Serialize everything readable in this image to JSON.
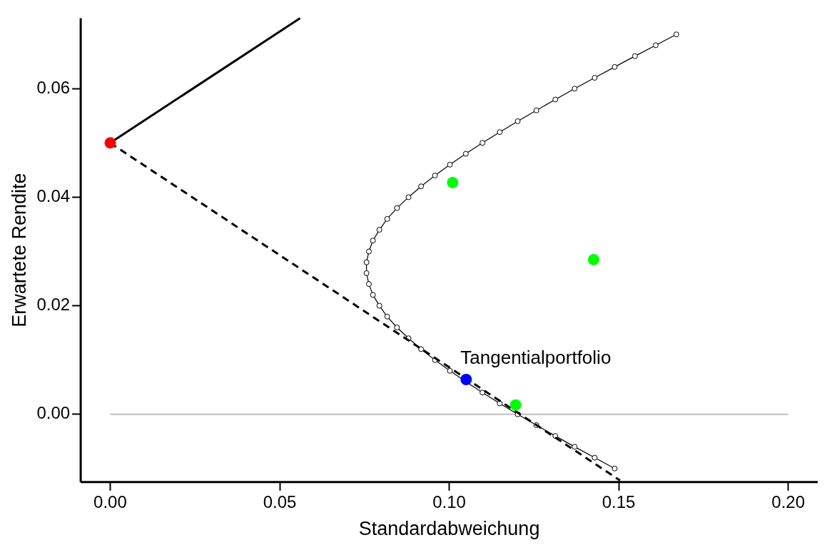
{
  "chart_data": {
    "type": "scatter",
    "xlabel": "Standardabweichung",
    "ylabel": "Erwartete Rendite",
    "xlim": [
      -0.0087,
      0.2087
    ],
    "ylim": [
      -0.0125,
      0.073
    ],
    "xticks": [
      {
        "value": 0,
        "label": "0.00"
      },
      {
        "value": 0.05,
        "label": "0.05"
      },
      {
        "value": 0.1,
        "label": "0.10"
      },
      {
        "value": 0.15,
        "label": "0.15"
      },
      {
        "value": 0.2,
        "label": "0.20"
      }
    ],
    "yticks": [
      {
        "value": 0,
        "label": "0.00"
      },
      {
        "value": 0.02,
        "label": "0.02"
      },
      {
        "value": 0.04,
        "label": "0.04"
      },
      {
        "value": 0.06,
        "label": "0.06"
      }
    ],
    "grid": false,
    "legend": false,
    "ref_lines": [
      {
        "axis": "y",
        "value": 0,
        "color": "#bebebe"
      }
    ],
    "annotations": [
      {
        "text": "Tangentialportfolio",
        "x": 0.105,
        "y": 0.0064
      }
    ],
    "series": [
      {
        "type": "line",
        "color": "#000000",
        "marker": "circle",
        "line_style": "solid",
        "x": [
          0.1488,
          0.1429,
          0.137,
          0.1313,
          0.1257,
          0.1202,
          0.1149,
          0.1098,
          0.1049,
          0.1002,
          0.0958,
          0.0917,
          0.088,
          0.0846,
          0.0817,
          0.0794,
          0.0775,
          0.0763,
          0.0756,
          0.0756,
          0.0763,
          0.0775,
          0.0794,
          0.0817,
          0.0846,
          0.088,
          0.0917,
          0.0958,
          0.1002,
          0.1049,
          0.1098,
          0.1149,
          0.1202,
          0.1257,
          0.1313,
          0.137,
          0.1429,
          0.1488,
          0.1548,
          0.1609,
          0.167
        ],
        "values": [
          -0.01,
          -0.008,
          -0.006,
          -0.004,
          -0.002,
          0,
          0.002,
          0.004,
          0.006,
          0.008,
          0.01,
          0.012,
          0.014,
          0.016,
          0.018,
          0.02,
          0.022,
          0.024,
          0.026,
          0.028,
          0.03,
          0.032,
          0.034,
          0.036,
          0.038,
          0.04,
          0.042,
          0.044,
          0.046,
          0.048,
          0.05,
          0.052,
          0.054,
          0.056,
          0.058,
          0.06,
          0.062,
          0.064,
          0.066,
          0.068,
          0.07
        ]
      },
      {
        "type": "line",
        "color": "#000000",
        "marker": "none",
        "line_style": "solid",
        "x": [
          0,
          0.056
        ],
        "values": [
          0.05,
          0.073
        ]
      },
      {
        "type": "line",
        "color": "#000000",
        "marker": "none",
        "line_style": "dashed",
        "x": [
          0,
          0.1504
        ],
        "values": [
          0.05,
          -0.0122
        ]
      },
      {
        "type": "scatter",
        "color": "#00ff00",
        "marker": "circle",
        "x": [
          0.101,
          0.1426,
          0.1196
        ],
        "values": [
          0.0427,
          0.0285,
          0.0017
        ]
      },
      {
        "type": "scatter",
        "color": "#ff0000",
        "marker": "circle",
        "x": [
          0
        ],
        "values": [
          0.05
        ]
      },
      {
        "type": "scatter",
        "color": "#0000ff",
        "marker": "circle",
        "x": [
          0.105
        ],
        "values": [
          0.0064
        ]
      }
    ]
  }
}
